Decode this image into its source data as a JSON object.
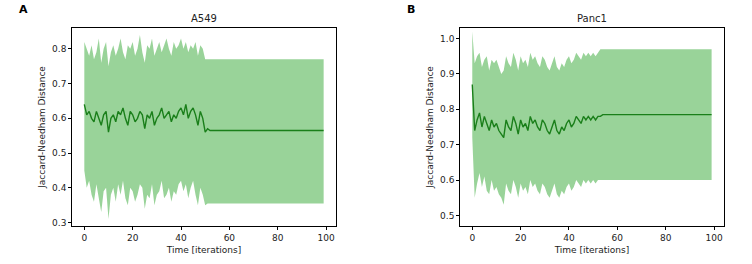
{
  "chart_data": [
    {
      "type": "line",
      "title": "A549",
      "annotations": [
        "A"
      ],
      "xlabel": "Time [iterations]",
      "ylabel": "Jaccard-Needham Distance",
      "color": "#1a7f1a",
      "x": [
        0,
        1,
        2,
        3,
        4,
        5,
        6,
        7,
        8,
        9,
        10,
        11,
        12,
        13,
        14,
        15,
        16,
        17,
        18,
        19,
        20,
        21,
        22,
        23,
        24,
        25,
        26,
        27,
        28,
        29,
        30,
        31,
        32,
        33,
        34,
        35,
        36,
        37,
        38,
        39,
        40,
        41,
        42,
        43,
        44,
        45,
        46,
        47,
        48,
        49,
        50,
        51,
        52,
        53,
        54,
        55,
        56,
        57,
        58,
        59,
        60,
        61,
        62,
        63,
        64,
        65,
        66,
        67,
        68,
        69,
        70,
        71,
        72,
        73,
        74,
        75,
        76,
        77,
        78,
        79,
        80,
        81,
        82,
        83,
        84,
        85,
        86,
        87,
        88,
        89,
        90,
        91,
        92,
        93,
        94,
        95,
        96,
        97,
        98,
        99
      ],
      "values": [
        0.64,
        0.61,
        0.62,
        0.6,
        0.59,
        0.62,
        0.6,
        0.58,
        0.61,
        0.62,
        0.56,
        0.6,
        0.61,
        0.59,
        0.62,
        0.61,
        0.63,
        0.6,
        0.58,
        0.62,
        0.61,
        0.59,
        0.6,
        0.62,
        0.61,
        0.57,
        0.61,
        0.6,
        0.62,
        0.58,
        0.6,
        0.61,
        0.63,
        0.6,
        0.61,
        0.62,
        0.59,
        0.61,
        0.6,
        0.62,
        0.63,
        0.61,
        0.64,
        0.6,
        0.62,
        0.63,
        0.61,
        0.58,
        0.62,
        0.6,
        0.56,
        0.57,
        0.565,
        0.565,
        0.565,
        0.565,
        0.565,
        0.565,
        0.565,
        0.565,
        0.565,
        0.565,
        0.565,
        0.565,
        0.565,
        0.565,
        0.565,
        0.565,
        0.565,
        0.565,
        0.565,
        0.565,
        0.565,
        0.565,
        0.565,
        0.565,
        0.565,
        0.565,
        0.565,
        0.565,
        0.565,
        0.565,
        0.565,
        0.565,
        0.565,
        0.565,
        0.565,
        0.565,
        0.565,
        0.565,
        0.565,
        0.565,
        0.565,
        0.565,
        0.565,
        0.565,
        0.565,
        0.565,
        0.565,
        0.565
      ],
      "upper": [
        0.82,
        0.8,
        0.78,
        0.81,
        0.77,
        0.79,
        0.83,
        0.76,
        0.8,
        0.82,
        0.75,
        0.79,
        0.81,
        0.78,
        0.8,
        0.83,
        0.79,
        0.77,
        0.81,
        0.8,
        0.82,
        0.78,
        0.8,
        0.84,
        0.79,
        0.76,
        0.81,
        0.8,
        0.83,
        0.78,
        0.8,
        0.82,
        0.79,
        0.81,
        0.83,
        0.8,
        0.78,
        0.82,
        0.8,
        0.81,
        0.83,
        0.8,
        0.82,
        0.79,
        0.81,
        0.8,
        0.82,
        0.78,
        0.81,
        0.8,
        0.77,
        0.77,
        0.77,
        0.77,
        0.77,
        0.77,
        0.77,
        0.77,
        0.77,
        0.77,
        0.77,
        0.77,
        0.77,
        0.77,
        0.77,
        0.77,
        0.77,
        0.77,
        0.77,
        0.77,
        0.77,
        0.77,
        0.77,
        0.77,
        0.77,
        0.77,
        0.77,
        0.77,
        0.77,
        0.77,
        0.77,
        0.77,
        0.77,
        0.77,
        0.77,
        0.77,
        0.77,
        0.77,
        0.77,
        0.77,
        0.77,
        0.77,
        0.77,
        0.77,
        0.77,
        0.77,
        0.77,
        0.77,
        0.77,
        0.77
      ],
      "lower": [
        0.45,
        0.4,
        0.42,
        0.38,
        0.36,
        0.41,
        0.37,
        0.33,
        0.39,
        0.4,
        0.31,
        0.38,
        0.4,
        0.36,
        0.41,
        0.38,
        0.42,
        0.37,
        0.35,
        0.4,
        0.39,
        0.36,
        0.38,
        0.41,
        0.4,
        0.34,
        0.38,
        0.37,
        0.41,
        0.35,
        0.38,
        0.39,
        0.42,
        0.37,
        0.38,
        0.4,
        0.36,
        0.39,
        0.38,
        0.41,
        0.42,
        0.39,
        0.41,
        0.37,
        0.4,
        0.42,
        0.38,
        0.35,
        0.4,
        0.38,
        0.35,
        0.355,
        0.355,
        0.355,
        0.355,
        0.355,
        0.355,
        0.355,
        0.355,
        0.355,
        0.355,
        0.355,
        0.355,
        0.355,
        0.355,
        0.355,
        0.355,
        0.355,
        0.355,
        0.355,
        0.355,
        0.355,
        0.355,
        0.355,
        0.355,
        0.355,
        0.355,
        0.355,
        0.355,
        0.355,
        0.355,
        0.355,
        0.355,
        0.355,
        0.355,
        0.355,
        0.355,
        0.355,
        0.355,
        0.355,
        0.355,
        0.355,
        0.355,
        0.355,
        0.355,
        0.355,
        0.355,
        0.355,
        0.355,
        0.355
      ],
      "xlim": [
        -5,
        104
      ],
      "xticks": [
        0,
        20,
        40,
        60,
        80,
        100
      ],
      "ylim": [
        0.29,
        0.86
      ],
      "yticks": [
        0.3,
        0.4,
        0.5,
        0.6,
        0.7,
        0.8
      ],
      "grid": false
    },
    {
      "type": "line",
      "title": "Panc1",
      "annotations": [
        "B"
      ],
      "xlabel": "Time [iterations]",
      "ylabel": "Jaccard-Needham Distance",
      "color": "#1a7f1a",
      "x": [
        0,
        1,
        2,
        3,
        4,
        5,
        6,
        7,
        8,
        9,
        10,
        11,
        12,
        13,
        14,
        15,
        16,
        17,
        18,
        19,
        20,
        21,
        22,
        23,
        24,
        25,
        26,
        27,
        28,
        29,
        30,
        31,
        32,
        33,
        34,
        35,
        36,
        37,
        38,
        39,
        40,
        41,
        42,
        43,
        44,
        45,
        46,
        47,
        48,
        49,
        50,
        51,
        52,
        53,
        54,
        55,
        56,
        57,
        58,
        59,
        60,
        61,
        62,
        63,
        64,
        65,
        66,
        67,
        68,
        69,
        70,
        71,
        72,
        73,
        74,
        75,
        76,
        77,
        78,
        79,
        80,
        81,
        82,
        83,
        84,
        85,
        86,
        87,
        88,
        89,
        90,
        91,
        92,
        93,
        94,
        95,
        96,
        97,
        98,
        99
      ],
      "values": [
        0.87,
        0.74,
        0.77,
        0.79,
        0.75,
        0.78,
        0.76,
        0.74,
        0.77,
        0.75,
        0.76,
        0.74,
        0.73,
        0.72,
        0.77,
        0.75,
        0.74,
        0.78,
        0.76,
        0.73,
        0.77,
        0.75,
        0.76,
        0.74,
        0.78,
        0.76,
        0.77,
        0.75,
        0.74,
        0.77,
        0.76,
        0.74,
        0.73,
        0.75,
        0.77,
        0.74,
        0.73,
        0.75,
        0.74,
        0.76,
        0.77,
        0.75,
        0.76,
        0.78,
        0.77,
        0.76,
        0.78,
        0.77,
        0.78,
        0.77,
        0.78,
        0.77,
        0.78,
        0.78,
        0.785,
        0.785,
        0.785,
        0.785,
        0.785,
        0.785,
        0.785,
        0.785,
        0.785,
        0.785,
        0.785,
        0.785,
        0.785,
        0.785,
        0.785,
        0.785,
        0.785,
        0.785,
        0.785,
        0.785,
        0.785,
        0.785,
        0.785,
        0.785,
        0.785,
        0.785,
        0.785,
        0.785,
        0.785,
        0.785,
        0.785,
        0.785,
        0.785,
        0.785,
        0.785,
        0.785,
        0.785,
        0.785,
        0.785,
        0.785,
        0.785,
        0.785,
        0.785,
        0.785,
        0.785,
        0.785
      ],
      "upper": [
        1.02,
        0.93,
        0.95,
        0.96,
        0.92,
        0.94,
        0.95,
        0.91,
        0.94,
        0.93,
        0.94,
        0.92,
        0.9,
        0.91,
        0.95,
        0.93,
        0.92,
        0.96,
        0.94,
        0.91,
        0.95,
        0.93,
        0.94,
        0.92,
        0.96,
        0.94,
        0.95,
        0.93,
        0.92,
        0.95,
        0.94,
        0.92,
        0.91,
        0.93,
        0.95,
        0.92,
        0.91,
        0.93,
        0.92,
        0.94,
        0.95,
        0.93,
        0.94,
        0.96,
        0.95,
        0.94,
        0.96,
        0.95,
        0.96,
        0.95,
        0.96,
        0.95,
        0.96,
        0.97,
        0.97,
        0.97,
        0.97,
        0.97,
        0.97,
        0.97,
        0.97,
        0.97,
        0.97,
        0.97,
        0.97,
        0.97,
        0.97,
        0.97,
        0.97,
        0.97,
        0.97,
        0.97,
        0.97,
        0.97,
        0.97,
        0.97,
        0.97,
        0.97,
        0.97,
        0.97,
        0.97,
        0.97,
        0.97,
        0.97,
        0.97,
        0.97,
        0.97,
        0.97,
        0.97,
        0.97,
        0.97,
        0.97,
        0.97,
        0.97,
        0.97,
        0.97,
        0.97,
        0.97,
        0.97,
        0.97
      ],
      "lower": [
        0.72,
        0.55,
        0.59,
        0.62,
        0.58,
        0.61,
        0.57,
        0.56,
        0.6,
        0.57,
        0.58,
        0.56,
        0.55,
        0.53,
        0.59,
        0.57,
        0.56,
        0.6,
        0.58,
        0.55,
        0.59,
        0.57,
        0.58,
        0.56,
        0.6,
        0.58,
        0.59,
        0.57,
        0.56,
        0.59,
        0.58,
        0.56,
        0.55,
        0.57,
        0.59,
        0.56,
        0.55,
        0.57,
        0.56,
        0.58,
        0.59,
        0.57,
        0.58,
        0.6,
        0.59,
        0.58,
        0.6,
        0.59,
        0.6,
        0.59,
        0.6,
        0.59,
        0.6,
        0.6,
        0.6,
        0.6,
        0.6,
        0.6,
        0.6,
        0.6,
        0.6,
        0.6,
        0.6,
        0.6,
        0.6,
        0.6,
        0.6,
        0.6,
        0.6,
        0.6,
        0.6,
        0.6,
        0.6,
        0.6,
        0.6,
        0.6,
        0.6,
        0.6,
        0.6,
        0.6,
        0.6,
        0.6,
        0.6,
        0.6,
        0.6,
        0.6,
        0.6,
        0.6,
        0.6,
        0.6,
        0.6,
        0.6,
        0.6,
        0.6,
        0.6,
        0.6,
        0.6,
        0.6,
        0.6,
        0.6
      ],
      "xlim": [
        -5,
        104
      ],
      "xticks": [
        0,
        20,
        40,
        60,
        80,
        100
      ],
      "ylim": [
        0.47,
        1.03
      ],
      "yticks": [
        0.5,
        0.6,
        0.7,
        0.8,
        0.9,
        {
          "value": 1,
          "label": "1.0"
        }
      ],
      "grid": false
    }
  ]
}
